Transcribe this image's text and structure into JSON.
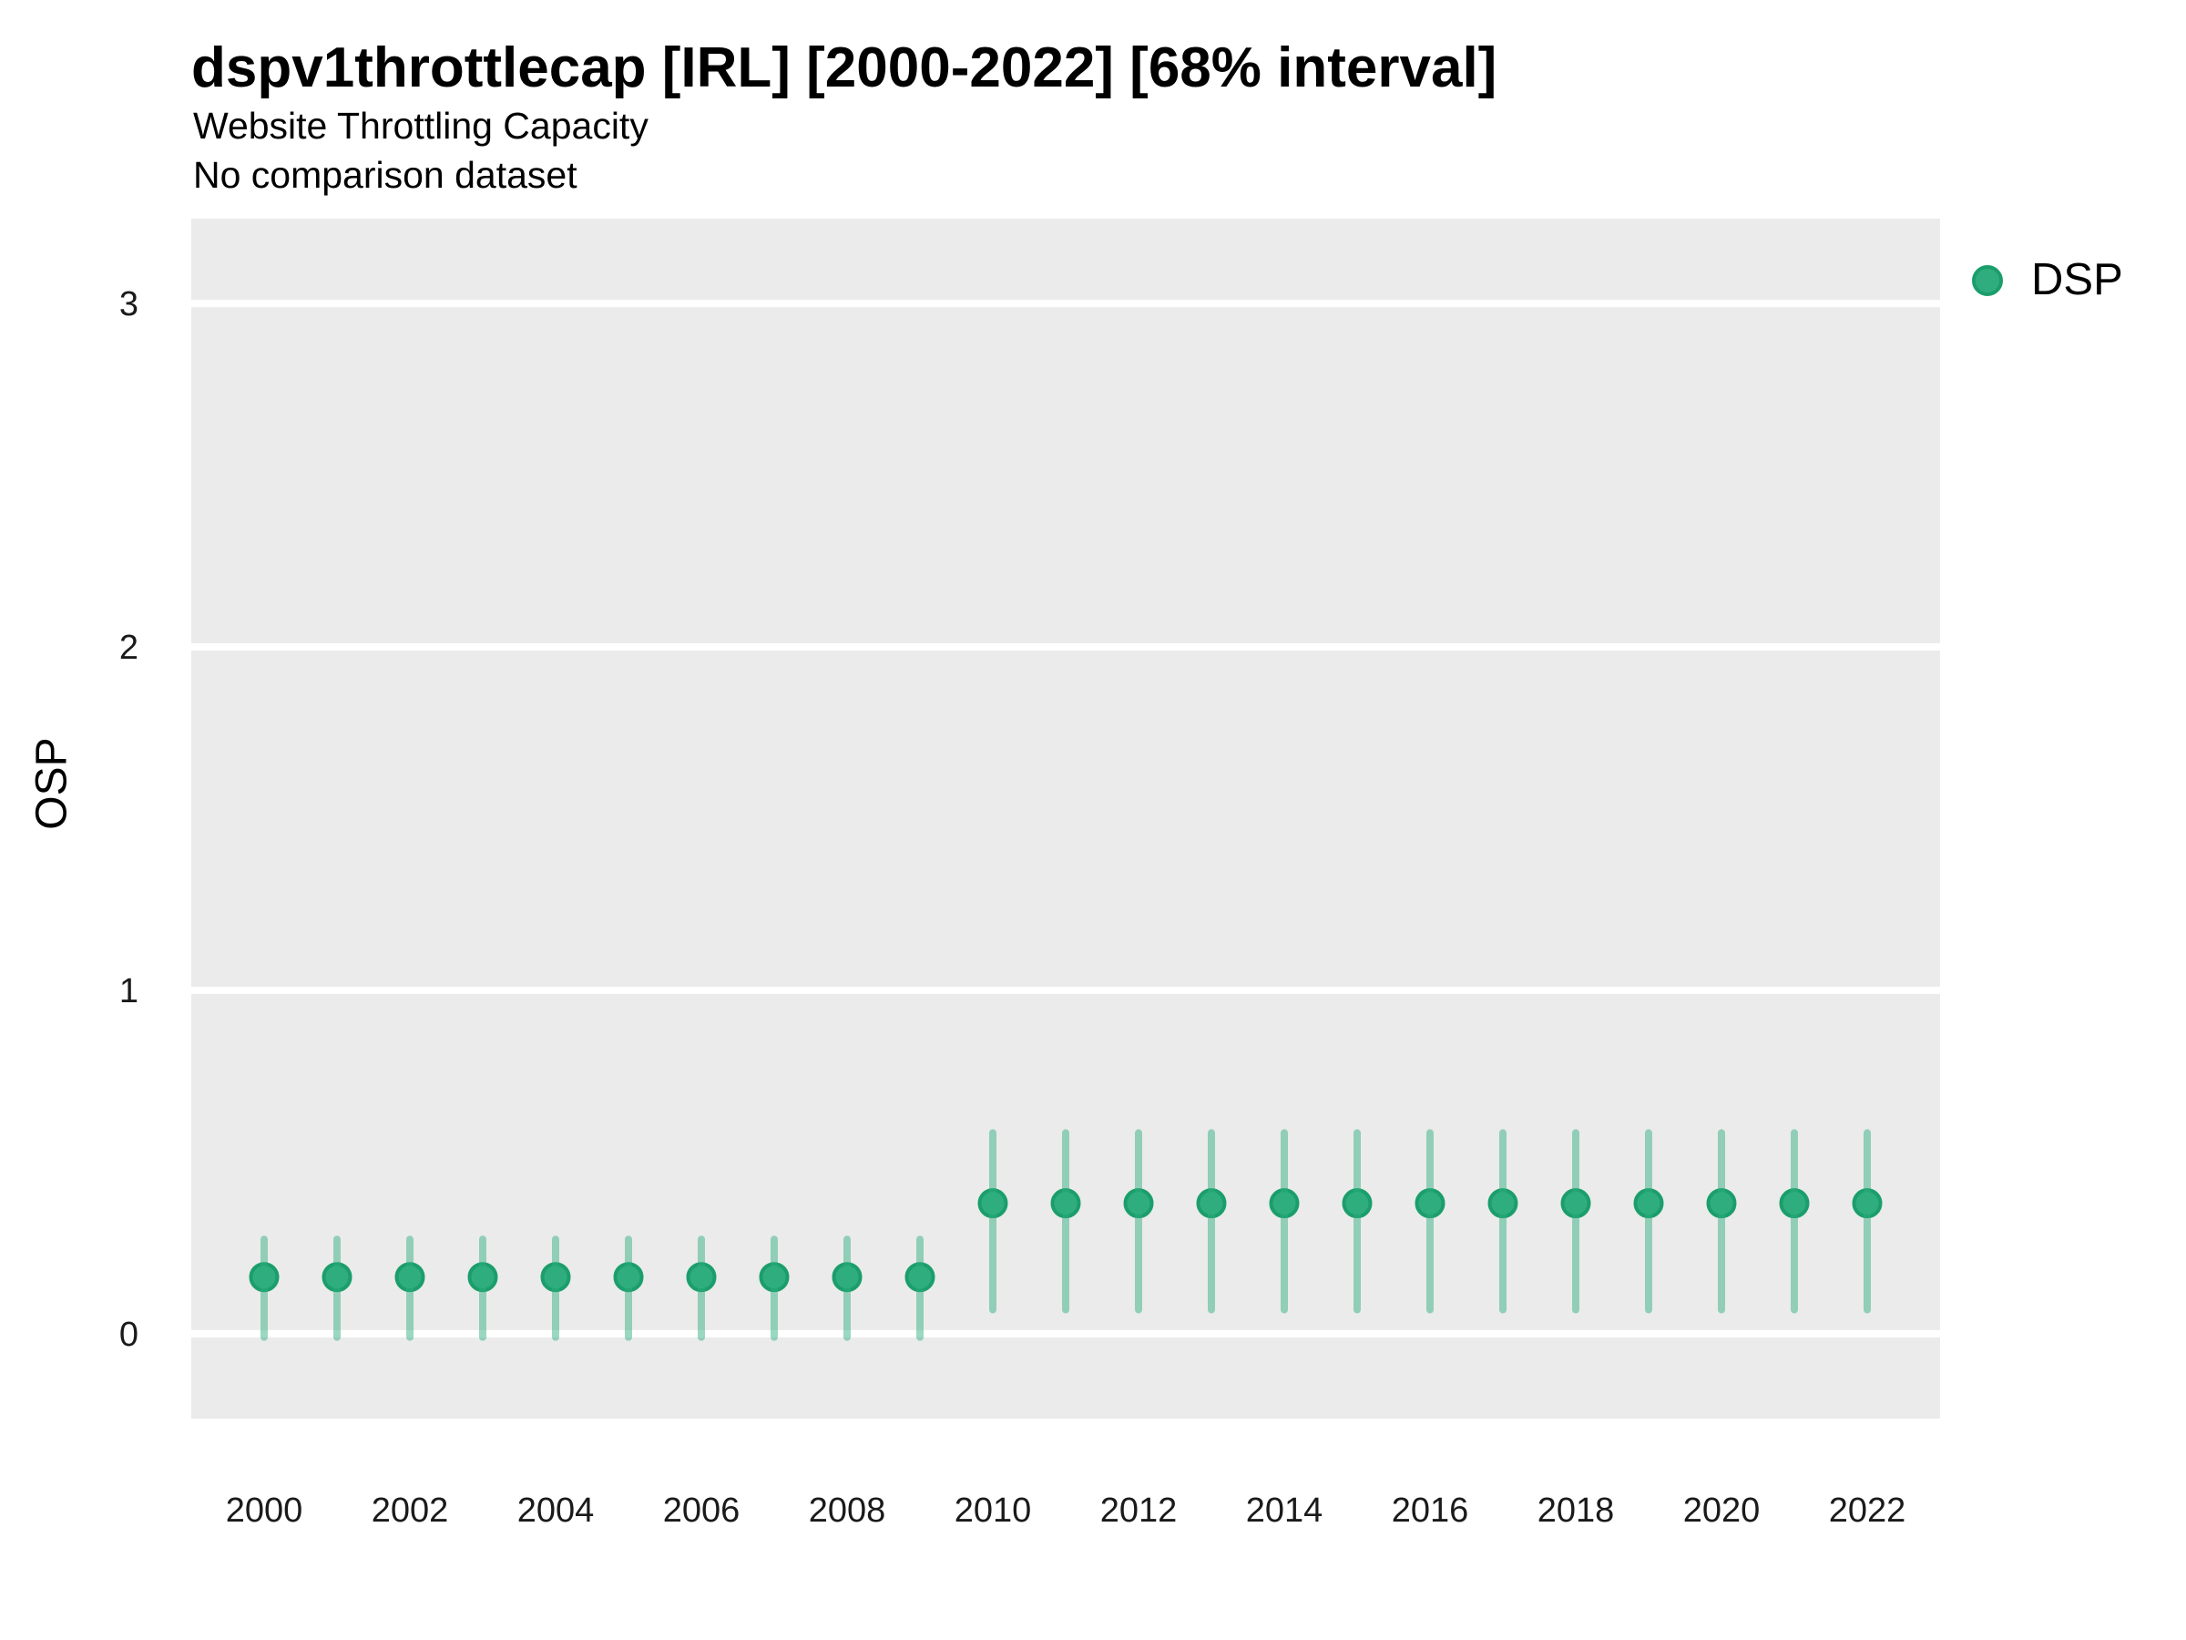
{
  "header": {
    "title": "dspv1throttlecap [IRL] [2000-2022] [68% interval]",
    "subtitle": "Website Throttling Capacity",
    "note": "No comparison dataset"
  },
  "legend": {
    "label": "DSP",
    "marker_color": "#2FAD7E",
    "marker_stroke": "#1B9E6B"
  },
  "axes": {
    "y_label": "OSP",
    "y_tick_labels": [
      "0",
      "1",
      "2",
      "3"
    ],
    "x_tick_labels": [
      "2000",
      "2002",
      "2004",
      "2006",
      "2008",
      "2010",
      "2012",
      "2014",
      "2016",
      "2018",
      "2020",
      "2022"
    ]
  },
  "colors": {
    "panel_background": "#EBEBEB",
    "gridline": "#FFFFFF",
    "point_fill": "#2FAD7E",
    "point_stroke": "#1B9E6B",
    "interval_line": "#2FAD7E",
    "tick_text": "#1A1A1A"
  },
  "chart_data": {
    "type": "scatter",
    "title": "dspv1throttlecap [IRL] [2000-2022] [68% interval]",
    "subtitle": "Website Throttling Capacity",
    "note": "No comparison dataset",
    "xlabel": "",
    "ylabel": "OSP",
    "legend_position": "right",
    "grid": "horizontal-major-only",
    "interval_level": "68%",
    "x": [
      2000,
      2001,
      2002,
      2003,
      2004,
      2005,
      2006,
      2007,
      2008,
      2009,
      2010,
      2011,
      2012,
      2013,
      2014,
      2015,
      2016,
      2017,
      2018,
      2019,
      2020,
      2021,
      2022
    ],
    "series": [
      {
        "name": "DSP",
        "values": [
          0.165,
          0.165,
          0.165,
          0.165,
          0.165,
          0.165,
          0.165,
          0.165,
          0.165,
          0.165,
          0.38,
          0.38,
          0.38,
          0.38,
          0.38,
          0.38,
          0.38,
          0.38,
          0.38,
          0.38,
          0.38,
          0.38,
          0.38
        ],
        "interval_low": [
          -0.01,
          -0.01,
          -0.01,
          -0.01,
          -0.01,
          -0.01,
          -0.01,
          -0.01,
          -0.01,
          -0.01,
          0.07,
          0.07,
          0.07,
          0.07,
          0.07,
          0.07,
          0.07,
          0.07,
          0.07,
          0.07,
          0.07,
          0.07,
          0.07
        ],
        "interval_high": [
          0.275,
          0.275,
          0.275,
          0.275,
          0.275,
          0.275,
          0.275,
          0.275,
          0.275,
          0.275,
          0.585,
          0.585,
          0.585,
          0.585,
          0.585,
          0.585,
          0.585,
          0.585,
          0.585,
          0.585,
          0.585,
          0.585,
          0.585
        ]
      }
    ],
    "xlim": [
      1999,
      2023
    ],
    "ylim": [
      -0.247,
      3.247
    ],
    "yticks": [
      0,
      1,
      2,
      3
    ],
    "xticks": [
      2000,
      2002,
      2004,
      2006,
      2008,
      2010,
      2012,
      2014,
      2016,
      2018,
      2020,
      2022
    ]
  }
}
